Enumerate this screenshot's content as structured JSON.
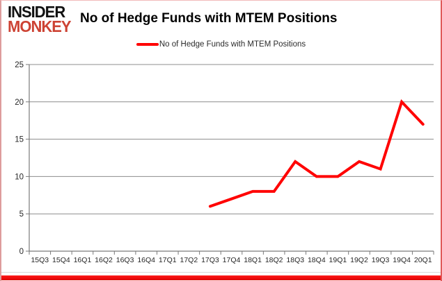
{
  "logo": {
    "line1": "INSIDER",
    "line2": "MONKEY"
  },
  "header": {
    "title": "No of Hedge Funds with MTEM Positions"
  },
  "legend": {
    "label": "No of Hedge Funds with MTEM Positions",
    "swatch_color": "#ff0000"
  },
  "chart_data": {
    "type": "line",
    "title": "No of Hedge Funds with MTEM Positions",
    "categories": [
      "15Q3",
      "15Q4",
      "16Q1",
      "16Q2",
      "16Q3",
      "16Q4",
      "17Q1",
      "17Q2",
      "17Q3",
      "17Q4",
      "18Q1",
      "18Q2",
      "18Q3",
      "18Q4",
      "19Q1",
      "19Q2",
      "19Q3",
      "19Q4",
      "20Q1"
    ],
    "series": [
      {
        "name": "No of Hedge Funds with MTEM Positions",
        "color": "#ff0000",
        "values": [
          null,
          null,
          null,
          null,
          null,
          null,
          null,
          null,
          6,
          7,
          8,
          8,
          12,
          10,
          10,
          12,
          11,
          20,
          17
        ]
      }
    ],
    "xlabel": "",
    "ylabel": "",
    "ylim": [
      0,
      25
    ],
    "yticks": [
      0,
      5,
      10,
      15,
      20,
      25
    ],
    "grid": true,
    "legend_position": "top-center"
  },
  "colors": {
    "line": "#ff0000",
    "gridline": "#8c8c8c",
    "axis": "#7a7a7a",
    "tick_label": "#262626",
    "logo_black": "#111111",
    "logo_red": "#cd4334",
    "bottom_bar": "#ee0000"
  }
}
